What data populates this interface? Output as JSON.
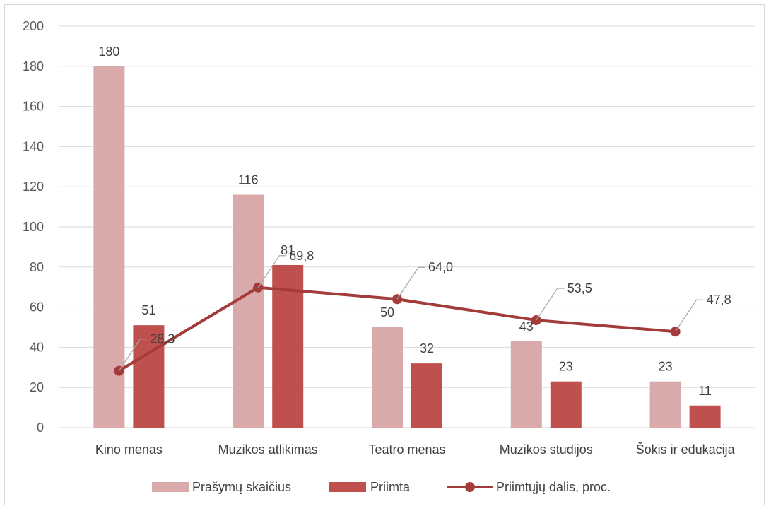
{
  "chart_data": {
    "type": "bar",
    "categories": [
      "Kino menas",
      "Muzikos atlikimas",
      "Teatro menas",
      "Muzikos studijos",
      "Šokis ir edukacija"
    ],
    "series": [
      {
        "name": "Prašymų skaičius",
        "type": "bar",
        "color": "#daa9a9",
        "values": [
          180,
          116,
          50,
          43,
          23
        ],
        "labels": [
          "180",
          "116",
          "50",
          "43",
          "23"
        ]
      },
      {
        "name": "Priimta",
        "type": "bar",
        "color": "#c0504d",
        "values": [
          51,
          81,
          32,
          23,
          11
        ],
        "labels": [
          "51",
          "81",
          "32",
          "23",
          "11"
        ]
      },
      {
        "name": "Priimtųjų dalis, proc.",
        "type": "line",
        "color": "#a23b39",
        "values": [
          28.3,
          69.8,
          64.0,
          53.5,
          47.8
        ],
        "labels": [
          "28,3",
          "69,8",
          "64,0",
          "53,5",
          "47,8"
        ]
      }
    ],
    "yticks": [
      "0",
      "20",
      "40",
      "60",
      "80",
      "100",
      "120",
      "140",
      "160",
      "180",
      "200"
    ],
    "ylim": [
      0,
      200
    ],
    "grid": true,
    "legend": "bottom"
  }
}
